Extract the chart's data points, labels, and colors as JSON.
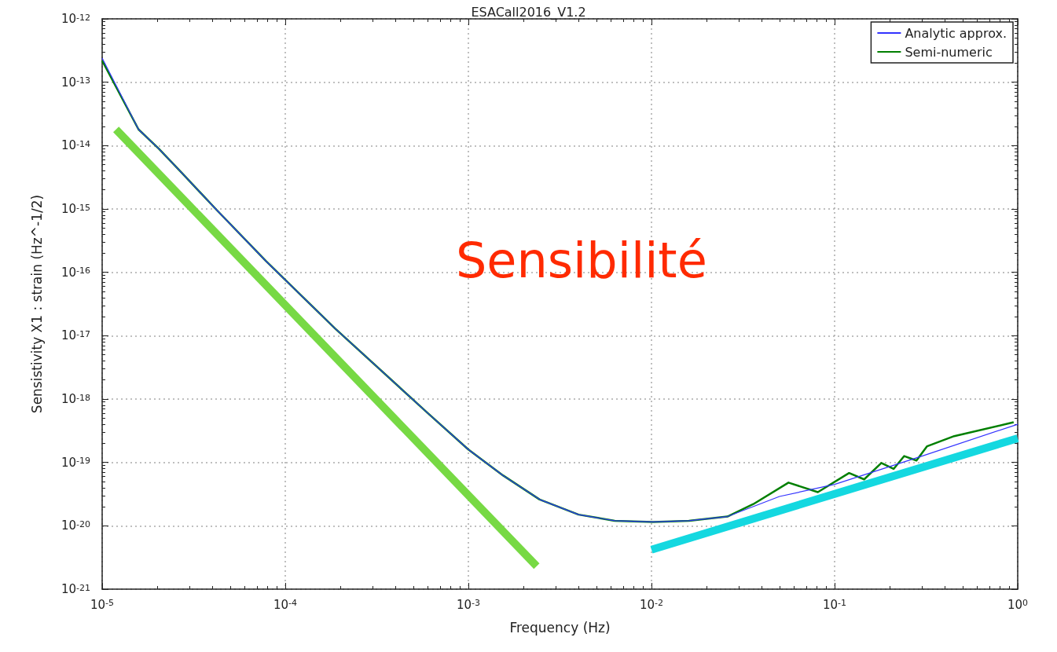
{
  "chart_data": {
    "type": "line",
    "title": "ESACall2016_V1.2",
    "xlabel": "Frequency (Hz)",
    "ylabel": "Sensistivity X1 : strain (Hz^-1/2)",
    "log": "xy",
    "grid": true,
    "legend": "top right",
    "marker": "none",
    "line_style": "solid",
    "xlim": [
      1e-05,
      1
    ],
    "ylim": [
      1e-21,
      1e-12
    ],
    "xticks": [
      {
        "value": 1e-05,
        "label": "10$^{-5}$"
      },
      {
        "value": 0.0001,
        "label": "10$^{-4}$"
      },
      {
        "value": 0.001,
        "label": "10$^{-3}$"
      },
      {
        "value": 0.01,
        "label": "10$^{-2}$"
      },
      {
        "value": 0.1,
        "label": "10$^{-1}$"
      },
      {
        "value": 1,
        "label": "10$^{0}$"
      }
    ],
    "yticks": [
      {
        "value": 1e-21,
        "label": "10$^{-21}$"
      },
      {
        "value": 1e-20,
        "label": "10$^{-20}$"
      },
      {
        "value": 1e-19,
        "label": "10$^{-19}$"
      },
      {
        "value": 1e-18,
        "label": "10$^{-18}$"
      },
      {
        "value": 1e-17,
        "label": "10$^{-17}$"
      },
      {
        "value": 1e-16,
        "label": "10$^{-16}$"
      },
      {
        "value": 1e-15,
        "label": "10$^{-15}$"
      },
      {
        "value": 1e-14,
        "label": "10$^{-14}$"
      },
      {
        "value": 1e-13,
        "label": "10$^{-13}$"
      },
      {
        "value": 1e-12,
        "label": "10$^{-12}$"
      }
    ],
    "annotations": [
      "Sensibilité"
    ],
    "series": [
      {
        "name": "Analytic approx.",
        "color": "#3333ff",
        "x": [
          1e-05,
          1.58e-05,
          2.04e-05,
          2.75e-05,
          4.17e-05,
          7.85e-05,
          0.000187,
          0.0006,
          0.001,
          0.00155,
          0.00245,
          0.004,
          0.0063,
          0.0102,
          0.016,
          0.026,
          0.05,
          0.1,
          0.3,
          1
        ],
        "values": [
          2.4e-13,
          1.8e-14,
          8.9e-15,
          3.6e-15,
          1e-15,
          1.5e-16,
          1.3e-17,
          6e-19,
          1.6e-19,
          6.2e-20,
          2.6e-20,
          1.5e-20,
          1.2e-20,
          1.15e-20,
          1.2e-20,
          1.4e-20,
          2.9e-20,
          4.5e-20,
          1.26e-19,
          4e-19
        ]
      },
      {
        "name": "Semi-numeric",
        "color": "#007f00",
        "x": [
          1e-05,
          1.58e-05,
          2.04e-05,
          2.75e-05,
          4.17e-05,
          7.85e-05,
          0.000187,
          0.0006,
          0.001,
          0.00155,
          0.00245,
          0.004,
          0.0063,
          0.0102,
          0.016,
          0.026,
          0.036,
          0.056,
          0.081,
          0.12,
          0.145,
          0.18,
          0.21,
          0.24,
          0.28,
          0.32,
          0.45,
          0.95
        ],
        "values": [
          2.2e-13,
          1.8e-14,
          8.9e-15,
          3.6e-15,
          1e-15,
          1.5e-16,
          1.3e-17,
          6e-19,
          1.6e-19,
          6.2e-20,
          2.6e-20,
          1.5e-20,
          1.2e-20,
          1.15e-20,
          1.2e-20,
          1.4e-20,
          2.2e-20,
          4.8e-20,
          3.4e-20,
          6.8e-20,
          5.4e-20,
          9.8e-20,
          7.9e-20,
          1.26e-19,
          1.07e-19,
          1.8e-19,
          2.6e-19,
          4.3e-19
        ]
      },
      {
        "color": "#77d944",
        "x": [
          1.19e-05,
          0.00236
        ],
        "values": [
          1.8e-14,
          2.3e-21
        ]
      },
      {
        "color": "#14d8e0",
        "x": [
          0.01,
          1
        ],
        "values": [
          4.2e-21,
          2.4e-19
        ]
      }
    ]
  }
}
